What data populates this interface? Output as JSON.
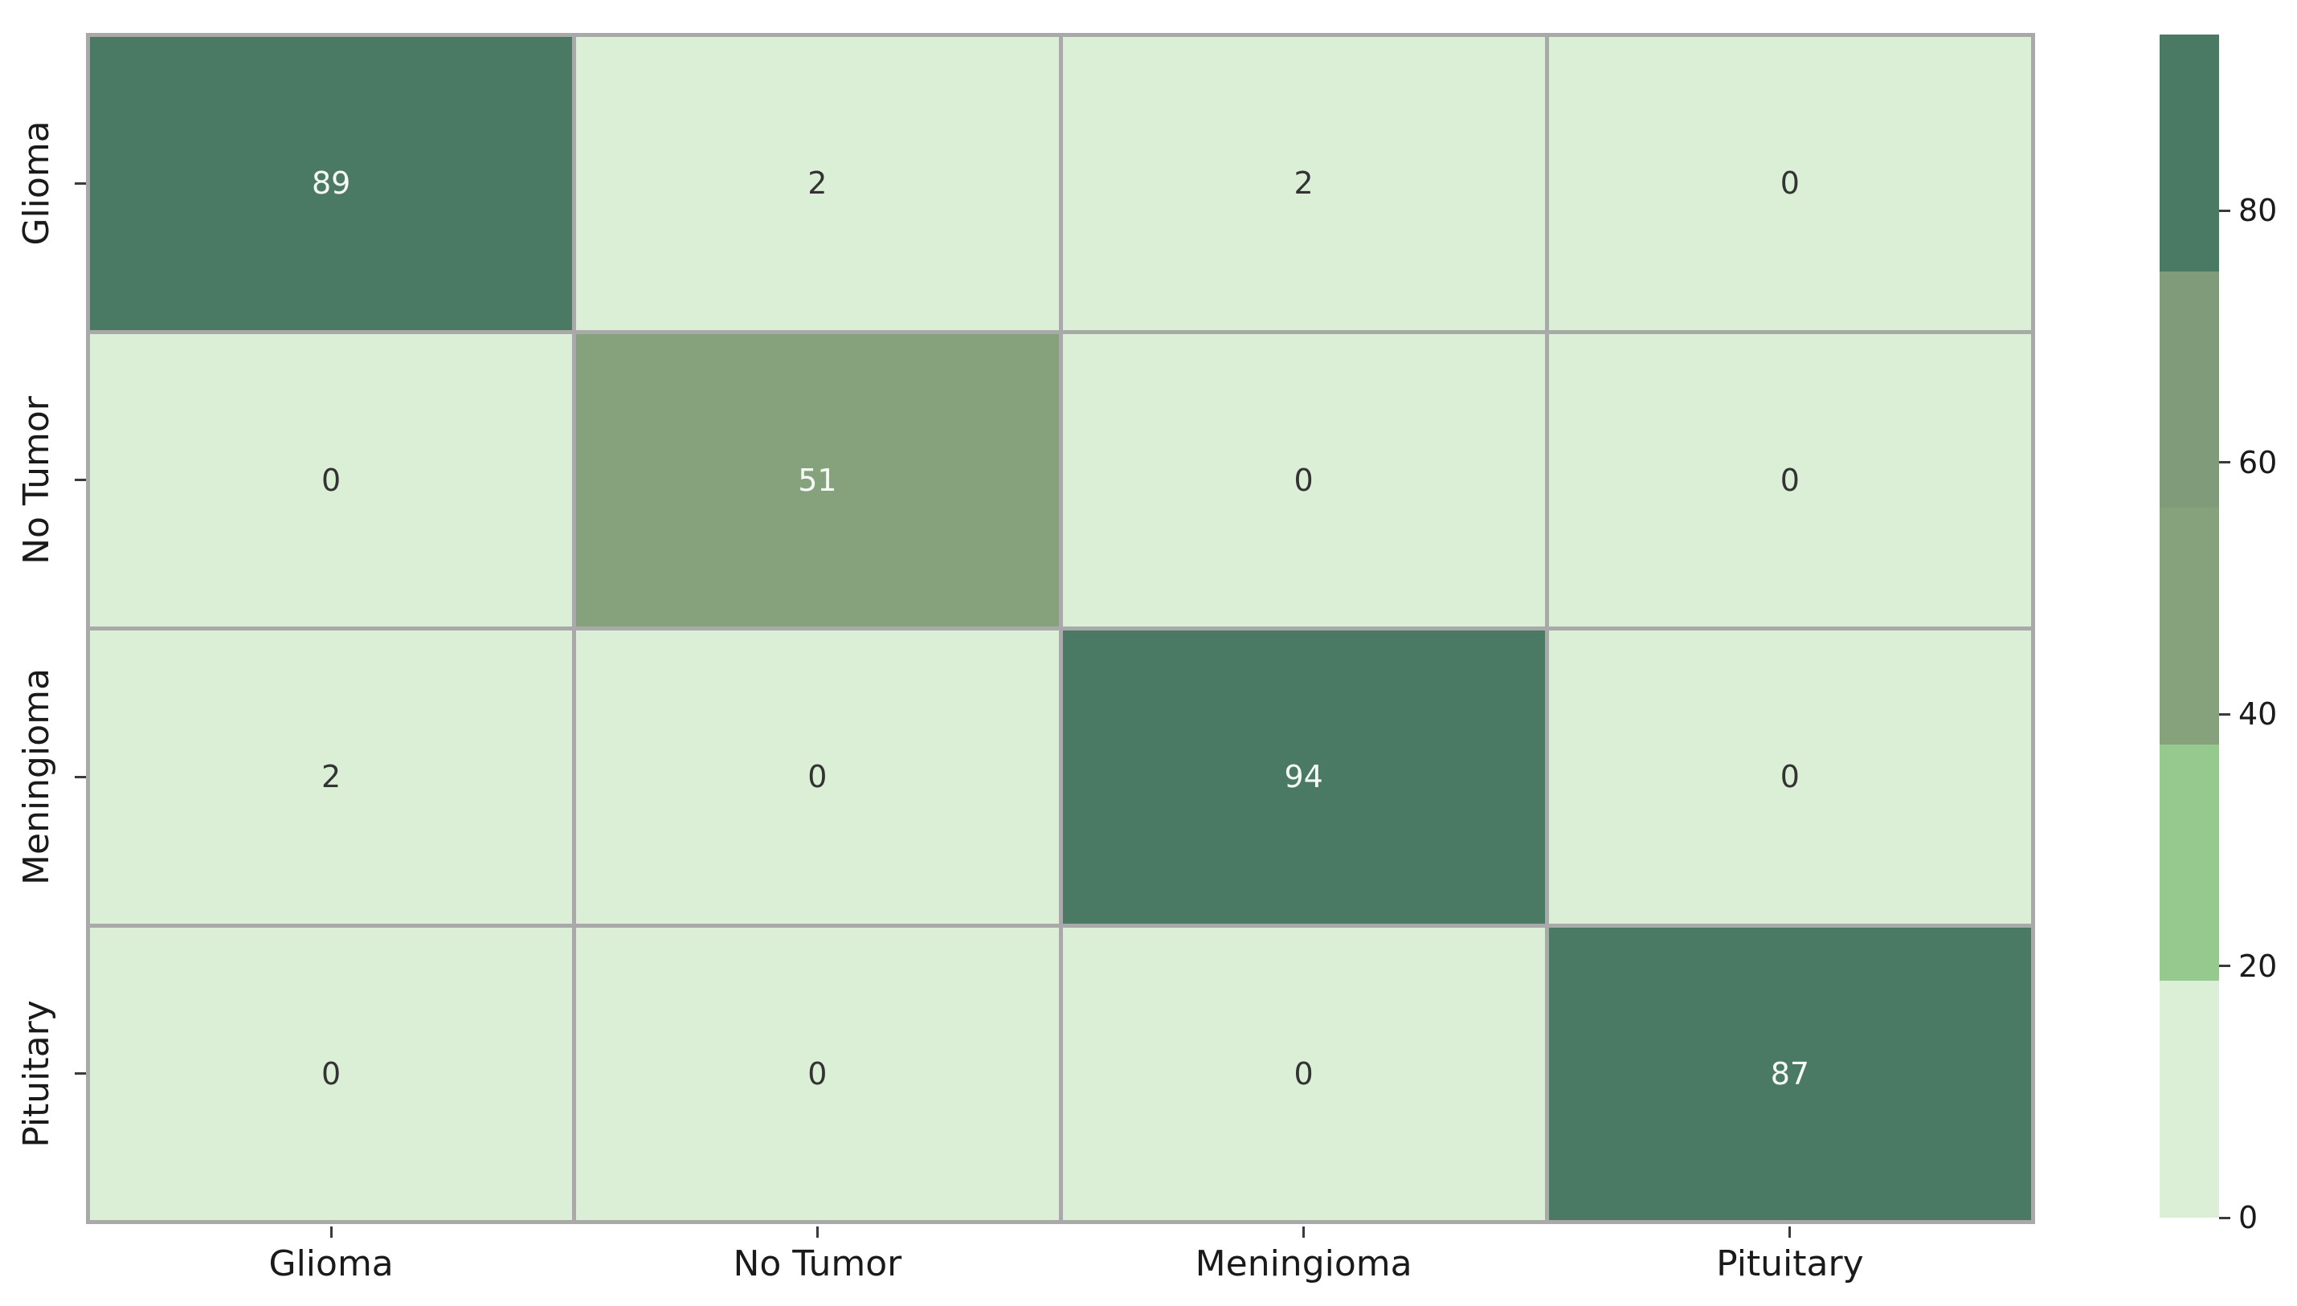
{
  "chart_data": {
    "type": "heatmap",
    "title": "",
    "xlabel": "",
    "ylabel": "",
    "x_axis": {
      "categories": [
        "Glioma",
        "No Tumor",
        "Meningioma",
        "Pituitary"
      ]
    },
    "y_axis": {
      "categories": [
        "Glioma",
        "No Tumor",
        "Meningioma",
        "Pituitary"
      ]
    },
    "matrix": [
      [
        89,
        2,
        2,
        0
      ],
      [
        0,
        51,
        0,
        0
      ],
      [
        2,
        0,
        94,
        0
      ],
      [
        0,
        0,
        0,
        87
      ]
    ],
    "value_range": [
      0,
      94
    ],
    "colorbar": {
      "position": "right",
      "ticks": [
        0,
        20,
        40,
        60,
        80
      ]
    },
    "palette_levels": [
      {
        "max": 18.8,
        "color": "#dbefd6"
      },
      {
        "max": 37.6,
        "color": "#95c98d"
      },
      {
        "max": 56.4,
        "color": "#85a27d"
      },
      {
        "max": 75.2,
        "color": "#7f9b7a"
      },
      {
        "max": 94,
        "color": "#4a7a63"
      }
    ],
    "grid": "cell-borders",
    "colors": {
      "grid_line": "#a9a9a9",
      "annotation_light_text": "#f7faf6",
      "annotation_dark_text": "#333333",
      "axis_text": "#1a1a1a",
      "tick_mark": "#3a3a3a"
    }
  }
}
